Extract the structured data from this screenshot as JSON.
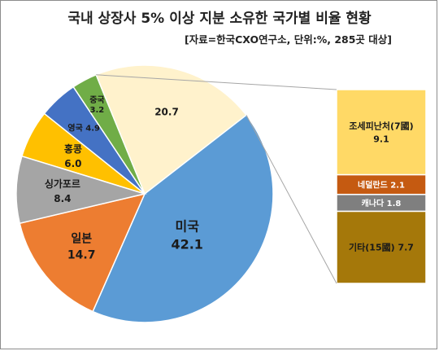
{
  "chart_data": {
    "type": "pie",
    "title": "국내 상장사 5% 이상 지분 소유한 국가별 비율 현황",
    "subtitle": "[자료=한국CXO연구소, 단위:%, 285곳 대상]",
    "slices": [
      {
        "name": "홍콩",
        "value": 6.0,
        "color": "#ffc000"
      },
      {
        "name": "영국",
        "value": 4.9,
        "color": "#4472c4"
      },
      {
        "name": "중국",
        "value": 3.2,
        "color": "#70ad47"
      },
      {
        "name": "",
        "value": 20.7,
        "color": "#fff2cc"
      },
      {
        "name": "미국",
        "value": 42.1,
        "color": "#5b9bd5"
      },
      {
        "name": "일본",
        "value": 14.7,
        "color": "#ed7d31"
      },
      {
        "name": "싱가포르",
        "value": 8.4,
        "color": "#a5a5a5"
      }
    ],
    "breakdown": {
      "of_value": 20.7,
      "segments": [
        {
          "name": "조세피난처(7國)",
          "value": 9.1,
          "color": "#ffd966"
        },
        {
          "name": "네덜란드",
          "value": 2.1,
          "color": "#c55a11"
        },
        {
          "name": "캐나다",
          "value": 1.8,
          "color": "#7f7f7f"
        },
        {
          "name": "기타(15國)",
          "value": 7.7,
          "color": "#a5780a"
        }
      ]
    }
  }
}
